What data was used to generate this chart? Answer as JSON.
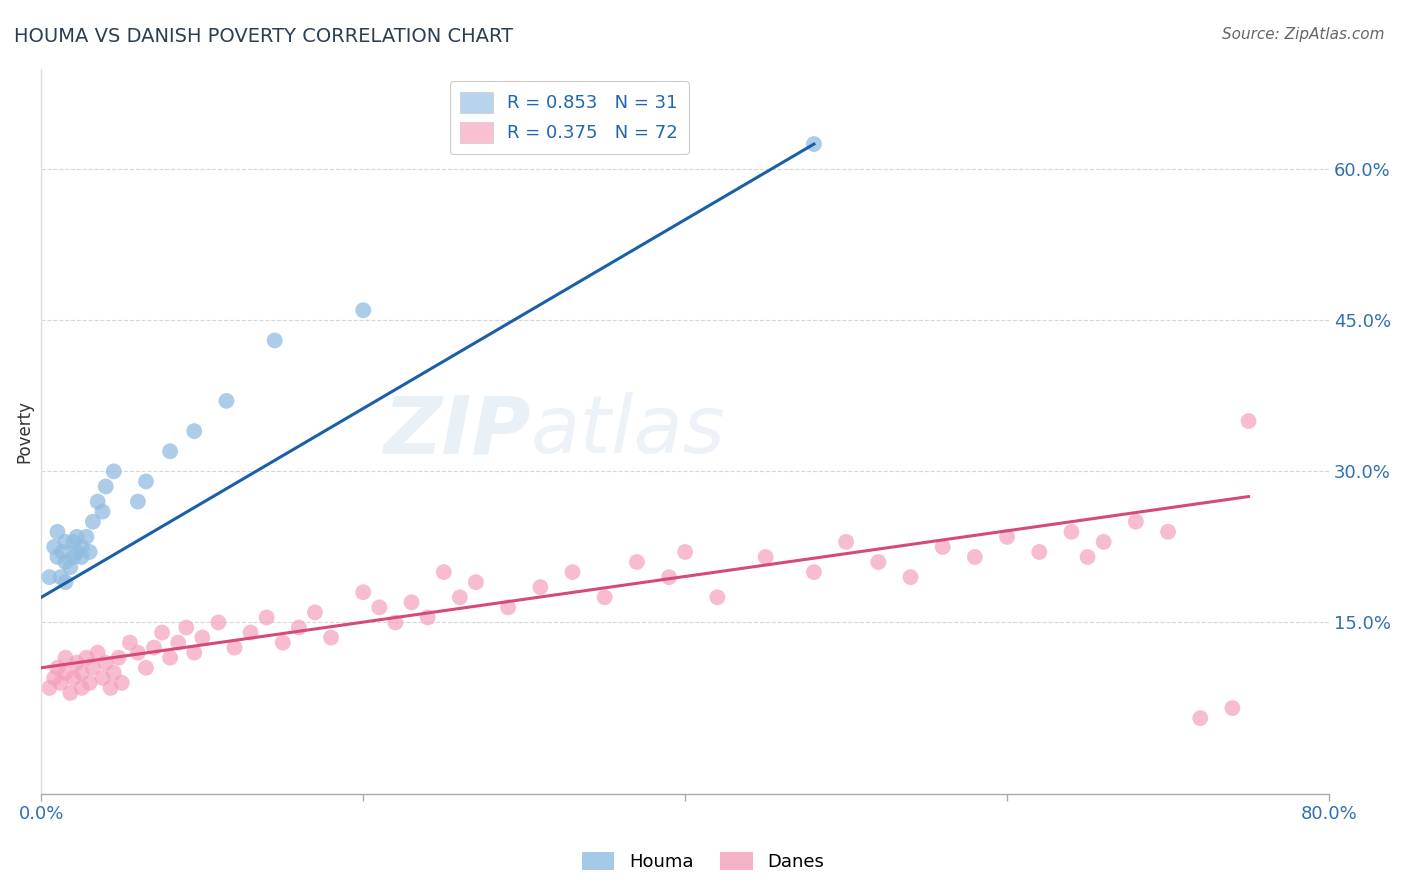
{
  "title": "HOUMA VS DANISH POVERTY CORRELATION CHART",
  "source": "Source: ZipAtlas.com",
  "ylabel": "Poverty",
  "ytick_labels": [
    "15.0%",
    "30.0%",
    "45.0%",
    "60.0%"
  ],
  "ytick_values": [
    0.15,
    0.3,
    0.45,
    0.6
  ],
  "xtick_labels": [
    "0.0%",
    "80.0%"
  ],
  "xtick_values": [
    0.0,
    0.8
  ],
  "xlim": [
    0.0,
    0.8
  ],
  "ylim": [
    -0.02,
    0.7
  ],
  "houma_color": "#90bce0",
  "danes_color": "#f4a0bb",
  "houma_line_color": "#1a5fa8",
  "danes_line_color": "#d64a7a",
  "legend_houma_color": "#b8d4ec",
  "legend_danes_color": "#f8c0d0",
  "legend_text_color": "#2166ac",
  "legend_N_color": "#2166ac",
  "legend_R_houma": "R = 0.853",
  "legend_N_houma": "N = 31",
  "legend_R_danes": "R = 0.375",
  "legend_N_danes": "N = 72",
  "houma_N": 31,
  "danes_N": 72,
  "background_color": "#ffffff",
  "grid_color": "#cccccc",
  "title_color": "#2c3e50",
  "axis_tick_color": "#3070b0",
  "houma_line_x0": 0.0,
  "houma_line_y0": 0.175,
  "houma_line_x1": 0.48,
  "houma_line_y1": 0.625,
  "danes_line_x0": 0.0,
  "danes_line_y0": 0.105,
  "danes_line_x1": 0.75,
  "danes_line_y1": 0.275,
  "houma_pts_x": [
    0.005,
    0.008,
    0.01,
    0.01,
    0.012,
    0.013,
    0.015,
    0.015,
    0.015,
    0.018,
    0.02,
    0.02,
    0.022,
    0.022,
    0.025,
    0.025,
    0.028,
    0.03,
    0.032,
    0.035,
    0.038,
    0.04,
    0.045,
    0.06,
    0.065,
    0.08,
    0.095,
    0.115,
    0.145,
    0.2,
    0.48
  ],
  "houma_pts_y": [
    0.195,
    0.225,
    0.215,
    0.24,
    0.195,
    0.22,
    0.19,
    0.21,
    0.23,
    0.205,
    0.215,
    0.23,
    0.22,
    0.235,
    0.215,
    0.225,
    0.235,
    0.22,
    0.25,
    0.27,
    0.26,
    0.285,
    0.3,
    0.27,
    0.29,
    0.32,
    0.34,
    0.37,
    0.43,
    0.46,
    0.625
  ],
  "danes_pts_x": [
    0.005,
    0.008,
    0.01,
    0.012,
    0.015,
    0.015,
    0.018,
    0.02,
    0.022,
    0.025,
    0.025,
    0.028,
    0.03,
    0.032,
    0.035,
    0.038,
    0.04,
    0.043,
    0.045,
    0.048,
    0.05,
    0.055,
    0.06,
    0.065,
    0.07,
    0.075,
    0.08,
    0.085,
    0.09,
    0.095,
    0.1,
    0.11,
    0.12,
    0.13,
    0.14,
    0.15,
    0.16,
    0.17,
    0.18,
    0.2,
    0.21,
    0.22,
    0.23,
    0.24,
    0.25,
    0.26,
    0.27,
    0.29,
    0.31,
    0.33,
    0.35,
    0.37,
    0.39,
    0.4,
    0.42,
    0.45,
    0.48,
    0.5,
    0.52,
    0.54,
    0.56,
    0.58,
    0.6,
    0.62,
    0.64,
    0.65,
    0.66,
    0.68,
    0.7,
    0.72,
    0.74,
    0.75
  ],
  "danes_pts_y": [
    0.085,
    0.095,
    0.105,
    0.09,
    0.1,
    0.115,
    0.08,
    0.095,
    0.11,
    0.085,
    0.1,
    0.115,
    0.09,
    0.105,
    0.12,
    0.095,
    0.11,
    0.085,
    0.1,
    0.115,
    0.09,
    0.13,
    0.12,
    0.105,
    0.125,
    0.14,
    0.115,
    0.13,
    0.145,
    0.12,
    0.135,
    0.15,
    0.125,
    0.14,
    0.155,
    0.13,
    0.145,
    0.16,
    0.135,
    0.18,
    0.165,
    0.15,
    0.17,
    0.155,
    0.2,
    0.175,
    0.19,
    0.165,
    0.185,
    0.2,
    0.175,
    0.21,
    0.195,
    0.22,
    0.175,
    0.215,
    0.2,
    0.23,
    0.21,
    0.195,
    0.225,
    0.215,
    0.235,
    0.22,
    0.24,
    0.215,
    0.23,
    0.25,
    0.24,
    0.055,
    0.065,
    0.35
  ]
}
